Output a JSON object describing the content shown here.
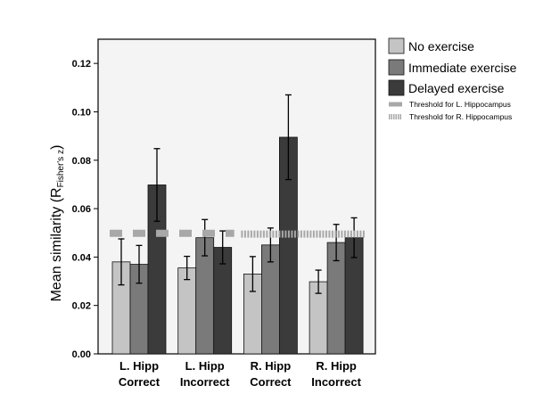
{
  "chart_data": {
    "type": "bar",
    "title": "",
    "xlabel": "",
    "ylabel": {
      "main": "Mean similarity (R",
      "subscript": "Fisher's z",
      "close": ")"
    },
    "ylim": [
      0,
      0.13
    ],
    "yticks": [
      0.0,
      0.02,
      0.04,
      0.06,
      0.08,
      0.1,
      0.12
    ],
    "ytick_labels": [
      "0.00",
      "0.02",
      "0.04",
      "0.06",
      "0.08",
      "0.10",
      "0.12"
    ],
    "grid": false,
    "categories": [
      {
        "line1": "L. Hipp",
        "line2": "Correct"
      },
      {
        "line1": "L. Hipp",
        "line2": "Incorrect"
      },
      {
        "line1": "R. Hipp",
        "line2": "Correct"
      },
      {
        "line1": "R. Hipp",
        "line2": "Incorrect"
      }
    ],
    "series": [
      {
        "name": "No exercise",
        "color": "#c4c4c4",
        "values": [
          0.038,
          0.0355,
          0.033,
          0.0298
        ],
        "errors": [
          0.0095,
          0.0048,
          0.0072,
          0.0048
        ]
      },
      {
        "name": "Immediate exercise",
        "color": "#7a7a7a",
        "values": [
          0.037,
          0.048,
          0.045,
          0.046
        ],
        "errors": [
          0.0078,
          0.0075,
          0.007,
          0.0075
        ]
      },
      {
        "name": "Delayed exercise",
        "color": "#3b3b3b",
        "values": [
          0.0698,
          0.044,
          0.0895,
          0.048
        ],
        "errors": [
          0.015,
          0.0068,
          0.0175,
          0.0082
        ]
      }
    ],
    "thresholds": [
      {
        "name": "Threshold for L. Hippocampus",
        "value": 0.0498,
        "style": "dashed",
        "color": "#a8a8a8",
        "categories": [
          0,
          1
        ]
      },
      {
        "name": "Threshold for R. Hippocampus",
        "value": 0.0495,
        "style": "dotted",
        "color": "#a8a8a8",
        "categories": [
          2,
          3
        ]
      }
    ],
    "legend_position": "right"
  }
}
